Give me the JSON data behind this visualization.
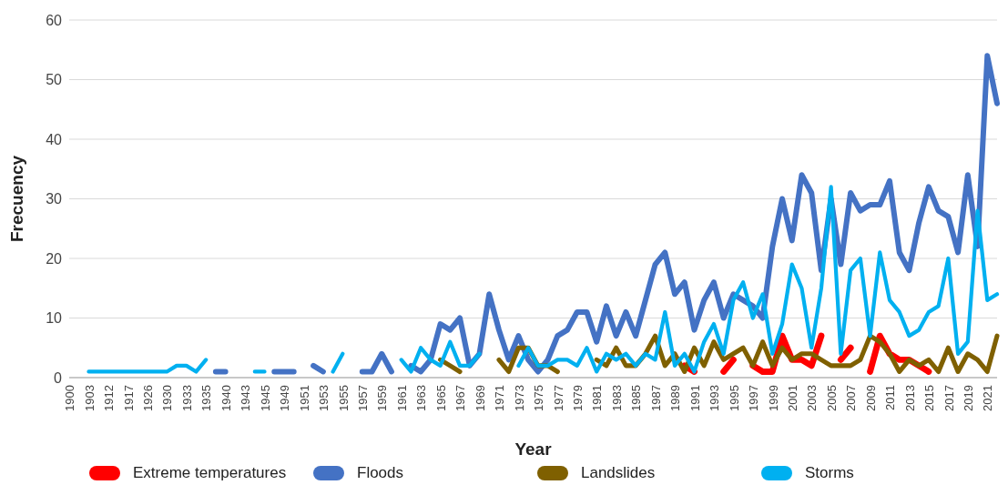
{
  "chart_data": {
    "type": "line",
    "xlabel": "Year",
    "ylabel": "Frecuency",
    "categories": [
      "1900",
      null,
      "1903",
      null,
      "1912",
      null,
      "1917",
      null,
      "1926",
      null,
      "1930",
      null,
      "1933",
      null,
      "1935",
      null,
      "1940",
      null,
      "1943",
      null,
      "1945",
      null,
      "1949",
      null,
      "1951",
      null,
      "1953",
      null,
      "1955",
      null,
      "1957",
      null,
      "1959",
      null,
      "1961",
      null,
      "1963",
      null,
      "1965",
      null,
      "1967",
      null,
      "1969",
      null,
      "1971",
      null,
      "1973",
      null,
      "1975",
      null,
      "1977",
      null,
      "1979",
      null,
      "1981",
      null,
      "1983",
      null,
      "1985",
      null,
      "1987",
      null,
      "1989",
      null,
      "1991",
      null,
      "1993",
      null,
      "1995",
      null,
      "1997",
      null,
      "1999",
      null,
      "2001",
      null,
      "2003",
      null,
      "2005",
      null,
      "2007",
      null,
      "2009",
      null,
      "2011",
      null,
      "2013",
      null,
      "2015",
      null,
      "2017",
      null,
      "2019",
      null,
      "2021",
      null
    ],
    "series": [
      {
        "name": "Extreme temperatures",
        "color": "#ff0000",
        "values": [
          null,
          null,
          null,
          null,
          null,
          null,
          null,
          null,
          null,
          null,
          null,
          null,
          null,
          null,
          null,
          null,
          null,
          null,
          null,
          null,
          null,
          null,
          null,
          null,
          null,
          null,
          null,
          null,
          null,
          null,
          null,
          null,
          null,
          null,
          null,
          null,
          null,
          null,
          null,
          null,
          null,
          null,
          null,
          null,
          null,
          null,
          null,
          null,
          null,
          null,
          null,
          null,
          null,
          null,
          null,
          null,
          null,
          null,
          null,
          null,
          null,
          null,
          null,
          2,
          1,
          null,
          null,
          1,
          3,
          null,
          2,
          1,
          1,
          7,
          3,
          3,
          2,
          7,
          null,
          3,
          5,
          null,
          1,
          7,
          4,
          3,
          3,
          2,
          1,
          null,
          null,
          null,
          null,
          null,
          null,
          null
        ]
      },
      {
        "name": "Floods",
        "color": "#4472c4",
        "values": [
          null,
          null,
          null,
          null,
          null,
          null,
          null,
          null,
          null,
          null,
          null,
          null,
          null,
          null,
          null,
          1,
          1,
          null,
          null,
          null,
          null,
          1,
          1,
          1,
          null,
          2,
          1,
          null,
          null,
          null,
          1,
          1,
          4,
          1,
          null,
          2,
          1,
          3,
          9,
          8,
          10,
          2,
          4,
          14,
          8,
          3,
          7,
          3,
          1,
          3,
          7,
          8,
          11,
          11,
          6,
          12,
          7,
          11,
          7,
          13,
          19,
          21,
          14,
          16,
          8,
          13,
          16,
          10,
          14,
          13,
          12,
          10,
          22,
          30,
          23,
          34,
          31,
          18,
          30,
          19,
          31,
          28,
          29,
          29,
          33,
          21,
          18,
          26,
          32,
          28,
          27,
          21,
          34,
          22,
          54,
          46
        ]
      },
      {
        "name": "Landslides",
        "color": "#7f6000",
        "values": [
          null,
          null,
          null,
          null,
          null,
          null,
          null,
          null,
          null,
          null,
          null,
          null,
          null,
          null,
          null,
          null,
          null,
          null,
          null,
          null,
          null,
          null,
          null,
          null,
          null,
          null,
          null,
          null,
          null,
          null,
          null,
          null,
          null,
          null,
          null,
          null,
          null,
          null,
          3,
          2,
          1,
          null,
          null,
          null,
          3,
          1,
          5,
          5,
          2,
          2,
          1,
          null,
          null,
          null,
          3,
          2,
          5,
          2,
          2,
          4,
          7,
          2,
          4,
          1,
          5,
          2,
          6,
          3,
          4,
          5,
          2,
          6,
          2,
          5,
          3,
          4,
          4,
          3,
          2,
          2,
          2,
          3,
          7,
          6,
          4,
          1,
          3,
          2,
          3,
          1,
          5,
          1,
          4,
          3,
          1,
          7
        ]
      },
      {
        "name": "Storms",
        "color": "#00b0f0",
        "values": [
          null,
          null,
          1,
          1,
          1,
          1,
          1,
          1,
          1,
          1,
          1,
          2,
          2,
          1,
          3,
          null,
          null,
          null,
          null,
          1,
          1,
          null,
          null,
          null,
          null,
          null,
          null,
          1,
          4,
          null,
          null,
          null,
          null,
          null,
          3,
          1,
          5,
          3,
          2,
          6,
          2,
          2,
          4,
          null,
          null,
          null,
          2,
          5,
          2,
          2,
          3,
          3,
          2,
          5,
          1,
          4,
          3,
          4,
          2,
          4,
          3,
          11,
          2,
          4,
          1,
          6,
          9,
          4,
          13,
          16,
          10,
          14,
          4,
          9,
          19,
          15,
          5,
          15,
          32,
          4,
          18,
          20,
          7,
          21,
          13,
          11,
          7,
          8,
          11,
          12,
          20,
          4,
          6,
          28,
          13,
          14
        ]
      }
    ],
    "ylim": [
      0,
      60
    ],
    "yticks": [
      0,
      10,
      20,
      30,
      40,
      50,
      60
    ],
    "grid": "y",
    "legend": "bottom",
    "marker": "none",
    "line_style": "solid"
  }
}
